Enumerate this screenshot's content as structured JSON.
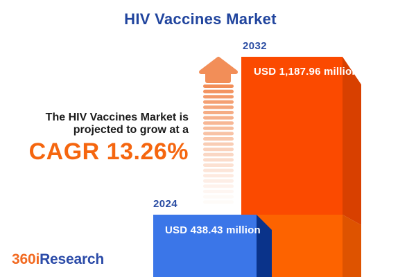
{
  "title": "HIV Vaccines Market",
  "description": {
    "line1": "The HIV Vaccines Market is",
    "line2": "projected to grow at a",
    "cagr": "CAGR 13.26%"
  },
  "bars": {
    "b2024": {
      "year": "2024",
      "value_label": "USD 438.43 million"
    },
    "b2032": {
      "year": "2032",
      "value_label": "USD 1,187.96 million"
    }
  },
  "logo": {
    "part1": "360i",
    "part2": "Research"
  },
  "colors": {
    "title_blue": "#21459E",
    "year_blue": "#2B4DA3",
    "text_dark": "#1A1A1A",
    "cagr_orange": "#F5660F",
    "bar2032_front": "#FB4A00",
    "bar2032_side": "#D84000",
    "bar2032_front_lower": "#FD6300",
    "bar2032_side_lower": "#DE5300",
    "bar2024_front": "#3B76E8",
    "bar2024_side": "#0A338A",
    "logo_orange": "#F26A21",
    "logo_blue": "#2B4BA8",
    "arrow": "#F28E58"
  },
  "chart_data": {
    "type": "bar",
    "title": "HIV Vaccines Market",
    "categories": [
      "2024",
      "2032"
    ],
    "values": [
      438.43,
      1187.96
    ],
    "unit": "USD million",
    "value_labels": [
      "USD 438.43 million",
      "USD 1,187.96 million"
    ],
    "cagr_percent": 13.26,
    "annotation": "The HIV Vaccines Market is projected to grow at a CAGR 13.26%",
    "bar_colors": [
      "#3B76E8",
      "#FB4A00"
    ],
    "legend": "none",
    "grid": false,
    "style": "3d-infographic, bars anchored to bottom edge, growth arrow between annotation and bars"
  }
}
